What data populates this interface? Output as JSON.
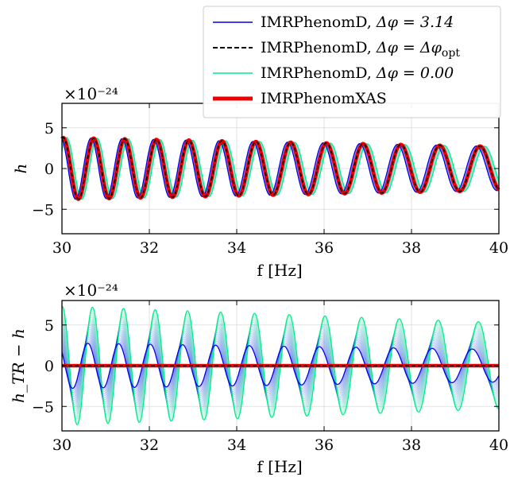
{
  "chart_data": [
    {
      "type": "line",
      "panel": "top",
      "xlabel": "f [Hz]",
      "ylabel": "h",
      "y_scale_label": "×10⁻²⁴",
      "y_scale_exponent": -24,
      "xlim": [
        30,
        40
      ],
      "ylim": [
        -8,
        8
      ],
      "xticks": [
        30,
        32,
        34,
        36,
        38,
        40
      ],
      "yticks": [
        -5,
        0,
        5
      ],
      "xtick_labels": [
        "30",
        "32",
        "34",
        "36",
        "38",
        "40"
      ],
      "ytick_labels": [
        "−5",
        "0",
        "5"
      ],
      "grid": true,
      "legend": "top-right",
      "series": [
        {
          "name": "IMRPhenomD, Δφ = 3.14",
          "color": "#0000ee",
          "style": "solid",
          "amplitude_start": 3.8,
          "amplitude_end": 2.7,
          "phase_offset": 3.14
        },
        {
          "name": "IMRPhenomD, Δφ = Δφ_opt",
          "color": "#000000",
          "style": "dashed",
          "amplitude_start": 3.8,
          "amplitude_end": 2.7,
          "phase_offset": 0
        },
        {
          "name": "IMRPhenomD, Δφ = 0.00",
          "color": "#00ee88",
          "style": "solid",
          "amplitude_start": 3.8,
          "amplitude_end": 2.7,
          "phase_offset": -1.0
        },
        {
          "name": "IMRPhenomXAS",
          "color": "#ee0000",
          "style": "solid",
          "amplitude_start": 3.8,
          "amplitude_end": 2.7,
          "phase_offset": 0
        }
      ],
      "frequency_start": 1.45,
      "frequency_end": 1.05
    },
    {
      "type": "line",
      "panel": "bottom",
      "xlabel": "f [Hz]",
      "ylabel": "h_TR − h",
      "y_scale_label": "×10⁻²⁴",
      "y_scale_exponent": -24,
      "xlim": [
        30,
        40
      ],
      "ylim": [
        -8,
        8
      ],
      "xticks": [
        30,
        32,
        34,
        36,
        38,
        40
      ],
      "yticks": [
        -5,
        0,
        5
      ],
      "xtick_labels": [
        "30",
        "32",
        "34",
        "36",
        "38",
        "40"
      ],
      "ytick_labels": [
        "−5",
        "0",
        "5"
      ],
      "grid": true,
      "series": [
        {
          "name": "IMRPhenomD, Δφ = 3.14",
          "color": "#0000ee",
          "style": "solid",
          "amplitude_start": 2.8,
          "amplitude_end": 2.0
        },
        {
          "name": "IMRPhenomD, Δφ = Δφ_opt",
          "color": "#000000",
          "style": "dashed",
          "amplitude_start": 0.05,
          "amplitude_end": 0.05
        },
        {
          "name": "IMRPhenomD, Δφ = 0.00",
          "color": "#00ee88",
          "style": "solid",
          "amplitude_start": 7.3,
          "amplitude_end": 5.3
        },
        {
          "name": "IMRPhenomXAS",
          "color": "#ee0000",
          "style": "solid",
          "amplitude_start": 0,
          "amplitude_end": 0
        }
      ]
    }
  ],
  "legend": {
    "items": [
      {
        "prefix": "IMRPhenomD, ",
        "math": "Δφ = 3.14",
        "color": "#0000ee",
        "style": "solid"
      },
      {
        "prefix": "IMRPhenomD, ",
        "math": "Δφ = Δφ",
        "sub": "opt",
        "color": "#000000",
        "style": "dashed"
      },
      {
        "prefix": "IMRPhenomD, ",
        "math": "Δφ = 0.00",
        "color": "#00ee88",
        "style": "solid"
      },
      {
        "prefix": "IMRPhenomXAS",
        "math": "",
        "color": "#ee0000",
        "style": "thick"
      }
    ]
  }
}
